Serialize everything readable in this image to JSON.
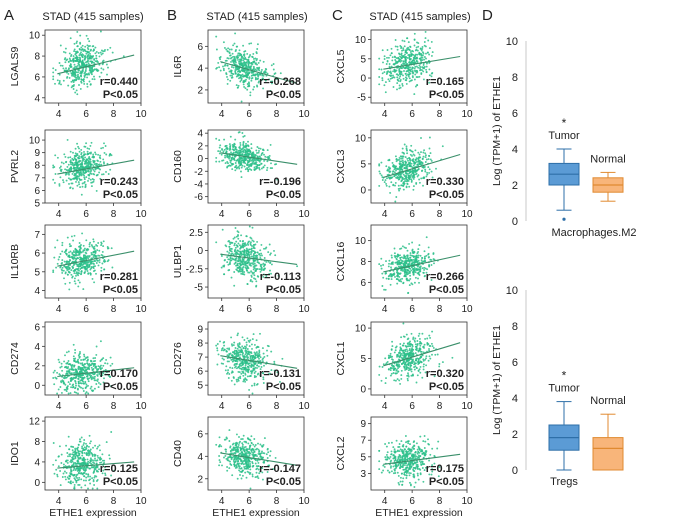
{
  "colors": {
    "dot": "#2bbf8a",
    "fit": "#3a8f6a",
    "tumor_fill": "#5b9bd5",
    "tumor_edge": "#2e6fa8",
    "normal_fill": "#f8b57a",
    "normal_edge": "#e08a30",
    "axis": "#333333"
  },
  "panels": [
    {
      "letter": "A",
      "title": "STAD (415 samples)"
    },
    {
      "letter": "B",
      "title": "STAD (415 samples)"
    },
    {
      "letter": "C",
      "title": "STAD (415 samples)"
    },
    {
      "letter": "D"
    }
  ],
  "chart_data": [
    {
      "type": "scatter",
      "panel": "A",
      "gene": "LGALS9",
      "xlabel": "ETHE1 expression",
      "ylabel": "LGALS9",
      "xlim": [
        3,
        10
      ],
      "xticks": [
        4,
        6,
        8,
        10
      ],
      "ylim": [
        3.5,
        10.5
      ],
      "yticks": [
        4,
        6,
        8,
        10
      ],
      "n": 415,
      "x_mean": 5.7,
      "x_sd": 0.85,
      "y_mean": 7.1,
      "y_sd": 1.1,
      "r_label": "r=0.440",
      "p_label": "P<0.05",
      "fit": [
        [
          3.9,
          6.3
        ],
        [
          9.5,
          8.1
        ]
      ],
      "show_xticks": false
    },
    {
      "type": "scatter",
      "panel": "A",
      "gene": "PVRL2",
      "xlabel": "ETHE1 expression",
      "ylabel": "PVRL2",
      "xlim": [
        3,
        10
      ],
      "xticks": [
        4,
        6,
        8,
        10
      ],
      "ylim": [
        5,
        10.8
      ],
      "yticks": [
        5,
        6,
        7,
        8,
        9,
        10
      ],
      "n": 415,
      "x_mean": 5.7,
      "x_sd": 0.85,
      "y_mean": 7.9,
      "y_sd": 0.85,
      "r_label": "r=0.243",
      "p_label": "P<0.05",
      "fit": [
        [
          3.9,
          7.3
        ],
        [
          9.5,
          8.4
        ]
      ],
      "show_xticks": true
    },
    {
      "type": "scatter",
      "panel": "A",
      "gene": "IL10RB",
      "xlabel": "ETHE1 expression",
      "ylabel": "IL10RB",
      "xlim": [
        3,
        10
      ],
      "xticks": [
        4,
        6,
        8,
        10
      ],
      "ylim": [
        3.6,
        7.5
      ],
      "yticks": [
        4,
        5,
        6,
        7
      ],
      "n": 415,
      "x_mean": 5.7,
      "x_sd": 0.85,
      "y_mean": 5.6,
      "y_sd": 0.55,
      "r_label": "r=0.281",
      "p_label": "P<0.05",
      "fit": [
        [
          3.9,
          5.3
        ],
        [
          9.5,
          6.1
        ]
      ],
      "show_xticks": false
    },
    {
      "type": "scatter",
      "panel": "A",
      "gene": "CD274",
      "xlabel": "ETHE1 expression",
      "ylabel": "CD274",
      "xlim": [
        3,
        10
      ],
      "xticks": [
        4,
        6,
        8,
        10
      ],
      "ylim": [
        -1,
        6.5
      ],
      "yticks": [
        0,
        2,
        4,
        6
      ],
      "n": 415,
      "x_mean": 5.7,
      "x_sd": 0.85,
      "y_mean": 1.3,
      "y_sd": 1.1,
      "r_label": "r=0.170",
      "p_label": "P<0.05",
      "fit": [
        [
          3.9,
          0.9
        ],
        [
          9.5,
          1.8
        ]
      ],
      "show_xticks": true
    },
    {
      "type": "scatter",
      "panel": "A",
      "gene": "IDO1",
      "xlabel": "ETHE1 expression",
      "ylabel": "IDO1",
      "xlim": [
        3,
        10
      ],
      "xticks": [
        4,
        6,
        8,
        10
      ],
      "ylim": [
        -1.5,
        12.8
      ],
      "yticks": [
        0,
        4,
        8,
        12
      ],
      "n": 415,
      "x_mean": 5.7,
      "x_sd": 0.85,
      "y_mean": 3.5,
      "y_sd": 2.3,
      "r_label": "r=0.125",
      "p_label": "P<0.05",
      "fit": [
        [
          3.9,
          2.8
        ],
        [
          9.5,
          4.0
        ]
      ],
      "show_xticks": true
    },
    {
      "type": "scatter",
      "panel": "B",
      "gene": "IL6R",
      "xlabel": "ETHE1 expression",
      "ylabel": "IL6R",
      "xlim": [
        3,
        10
      ],
      "xticks": [
        4,
        6,
        8,
        10
      ],
      "ylim": [
        0.8,
        7.5
      ],
      "yticks": [
        2,
        4,
        6
      ],
      "n": 415,
      "x_mean": 5.7,
      "x_sd": 0.85,
      "y_mean": 4.0,
      "y_sd": 1.0,
      "r_label": "r=-0.268",
      "p_label": "P<0.05",
      "fit": [
        [
          3.9,
          4.6
        ],
        [
          9.5,
          2.6
        ]
      ],
      "show_xticks": false
    },
    {
      "type": "scatter",
      "panel": "B",
      "gene": "CD160",
      "xlabel": "ETHE1 expression",
      "ylabel": "CD160",
      "xlim": [
        3,
        10
      ],
      "xticks": [
        4,
        6,
        8,
        10
      ],
      "ylim": [
        -7,
        4.5
      ],
      "yticks": [
        -6,
        -4,
        -2,
        0,
        2,
        4
      ],
      "n": 415,
      "x_mean": 5.7,
      "x_sd": 0.85,
      "y_mean": 0.3,
      "y_sd": 1.3,
      "r_label": "r=-0.196",
      "p_label": "P<0.05",
      "fit": [
        [
          3.9,
          0.9
        ],
        [
          9.5,
          -0.9
        ]
      ],
      "show_xticks": true
    },
    {
      "type": "scatter",
      "panel": "B",
      "gene": "ULBP1",
      "xlabel": "ETHE1 expression",
      "ylabel": "ULBP1",
      "xlim": [
        3,
        10
      ],
      "xticks": [
        4,
        6,
        8,
        10
      ],
      "ylim": [
        -6.5,
        3.5
      ],
      "yticks": [
        -5.0,
        -2.5,
        0.0,
        2.5
      ],
      "n": 415,
      "x_mean": 5.7,
      "x_sd": 0.85,
      "y_mean": -1.0,
      "y_sd": 1.6,
      "r_label": "r=-0.113",
      "p_label": "P<0.05",
      "fit": [
        [
          3.9,
          -0.5
        ],
        [
          9.5,
          -1.9
        ]
      ],
      "show_xticks": false
    },
    {
      "type": "scatter",
      "panel": "B",
      "gene": "CD276",
      "xlabel": "ETHE1 expression",
      "ylabel": "CD276",
      "xlim": [
        3,
        10
      ],
      "xticks": [
        4,
        6,
        8,
        10
      ],
      "ylim": [
        4.3,
        9.5
      ],
      "yticks": [
        5,
        6,
        7,
        8,
        9
      ],
      "n": 415,
      "x_mean": 5.7,
      "x_sd": 0.85,
      "y_mean": 6.8,
      "y_sd": 0.8,
      "r_label": "r=-0.131",
      "p_label": "P<0.05",
      "fit": [
        [
          3.9,
          7.1
        ],
        [
          9.5,
          6.2
        ]
      ],
      "show_xticks": true
    },
    {
      "type": "scatter",
      "panel": "B",
      "gene": "CD40",
      "xlabel": "ETHE1 expression",
      "ylabel": "CD40",
      "xlim": [
        3,
        10
      ],
      "xticks": [
        4,
        6,
        8,
        10
      ],
      "ylim": [
        1,
        7.5
      ],
      "yticks": [
        2,
        4,
        6
      ],
      "n": 415,
      "x_mean": 5.7,
      "x_sd": 0.85,
      "y_mean": 4.0,
      "y_sd": 0.9,
      "r_label": "r=-0.147",
      "p_label": "P<0.05",
      "fit": [
        [
          3.9,
          4.3
        ],
        [
          9.5,
          3.2
        ]
      ],
      "show_xticks": true
    },
    {
      "type": "scatter",
      "panel": "C",
      "gene": "CXCL5",
      "xlabel": "ETHE1 expression",
      "ylabel": "CXCL5",
      "xlim": [
        3,
        10
      ],
      "xticks": [
        4,
        6,
        8,
        10
      ],
      "ylim": [
        -6.5,
        12.5
      ],
      "yticks": [
        -5,
        0,
        5,
        10
      ],
      "n": 415,
      "x_mean": 5.7,
      "x_sd": 0.85,
      "y_mean": 4.0,
      "y_sd": 3.2,
      "r_label": "r=0.165",
      "p_label": "P<0.05",
      "fit": [
        [
          3.9,
          2.3
        ],
        [
          9.5,
          5.6
        ]
      ],
      "show_xticks": false
    },
    {
      "type": "scatter",
      "panel": "C",
      "gene": "CXCL3",
      "xlabel": "ETHE1 expression",
      "ylabel": "CXCL3",
      "xlim": [
        3,
        10
      ],
      "xticks": [
        4,
        6,
        8,
        10
      ],
      "ylim": [
        -2.5,
        11.5
      ],
      "yticks": [
        0,
        5,
        10
      ],
      "n": 415,
      "x_mean": 5.7,
      "x_sd": 0.85,
      "y_mean": 4.0,
      "y_sd": 2.0,
      "r_label": "r=0.330",
      "p_label": "P<0.05",
      "fit": [
        [
          3.9,
          2.4
        ],
        [
          9.5,
          6.8
        ]
      ],
      "show_xticks": false
    },
    {
      "type": "scatter",
      "panel": "C",
      "gene": "CXCL16",
      "xlabel": "ETHE1 expression",
      "ylabel": "CXCL16",
      "xlim": [
        3,
        10
      ],
      "xticks": [
        4,
        6,
        8,
        10
      ],
      "ylim": [
        4.5,
        11.5
      ],
      "yticks": [
        6,
        8,
        10
      ],
      "n": 415,
      "x_mean": 5.7,
      "x_sd": 0.85,
      "y_mean": 7.6,
      "y_sd": 0.9,
      "r_label": "r=0.266",
      "p_label": "P<0.05",
      "fit": [
        [
          3.9,
          7.0
        ],
        [
          9.5,
          8.6
        ]
      ],
      "show_xticks": false
    },
    {
      "type": "scatter",
      "panel": "C",
      "gene": "CXCL1",
      "xlabel": "ETHE1 expression",
      "ylabel": "CXCL1",
      "xlim": [
        3,
        10
      ],
      "xticks": [
        4,
        6,
        8,
        10
      ],
      "ylim": [
        -1,
        11
      ],
      "yticks": [
        0,
        5,
        10
      ],
      "n": 415,
      "x_mean": 5.7,
      "x_sd": 0.85,
      "y_mean": 5.2,
      "y_sd": 1.8,
      "r_label": "r=0.320",
      "p_label": "P<0.05",
      "fit": [
        [
          3.9,
          3.8
        ],
        [
          9.5,
          7.6
        ]
      ],
      "show_xticks": false
    },
    {
      "type": "scatter",
      "panel": "C",
      "gene": "CXCL2",
      "xlabel": "ETHE1 expression",
      "ylabel": "CXCL2",
      "xlim": [
        3,
        10
      ],
      "xticks": [
        4,
        6,
        8,
        10
      ],
      "ylim": [
        1,
        9.8
      ],
      "yticks": [
        3,
        5,
        7,
        9
      ],
      "n": 415,
      "x_mean": 5.7,
      "x_sd": 0.85,
      "y_mean": 4.6,
      "y_sd": 1.3,
      "r_label": "r=0.175",
      "p_label": "P<0.05",
      "fit": [
        [
          3.9,
          4.1
        ],
        [
          9.5,
          5.3
        ]
      ],
      "show_xticks": true
    },
    {
      "type": "box",
      "panel": "D",
      "title": "Macrophages.M2",
      "ylabel": "Log (TPM+1) of ETHE1",
      "ylim": [
        0,
        10
      ],
      "yticks": [
        0,
        2,
        4,
        6,
        8,
        10
      ],
      "groups": [
        {
          "name": "Tumor",
          "q1": 2.0,
          "median": 2.6,
          "q3": 3.2,
          "whisker_low": 0.6,
          "whisker_high": 4.0,
          "outliers": [
            0.1
          ]
        },
        {
          "name": "Normal",
          "q1": 1.6,
          "median": 2.0,
          "q3": 2.4,
          "whisker_low": 1.1,
          "whisker_high": 2.7,
          "outliers": []
        }
      ],
      "significance": "*"
    },
    {
      "type": "box",
      "panel": "D",
      "title": "Tregs",
      "ylabel": "Log (TPM+1) of ETHE1",
      "ylim": [
        0,
        10
      ],
      "yticks": [
        0,
        2,
        4,
        6,
        8,
        10
      ],
      "groups": [
        {
          "name": "Tumor",
          "q1": 1.1,
          "median": 1.8,
          "q3": 2.5,
          "whisker_low": 0.0,
          "whisker_high": 3.8,
          "outliers": []
        },
        {
          "name": "Normal",
          "q1": 0.0,
          "median": 1.2,
          "q3": 1.8,
          "whisker_low": 0.0,
          "whisker_high": 3.1,
          "outliers": []
        }
      ],
      "significance": "*"
    }
  ]
}
